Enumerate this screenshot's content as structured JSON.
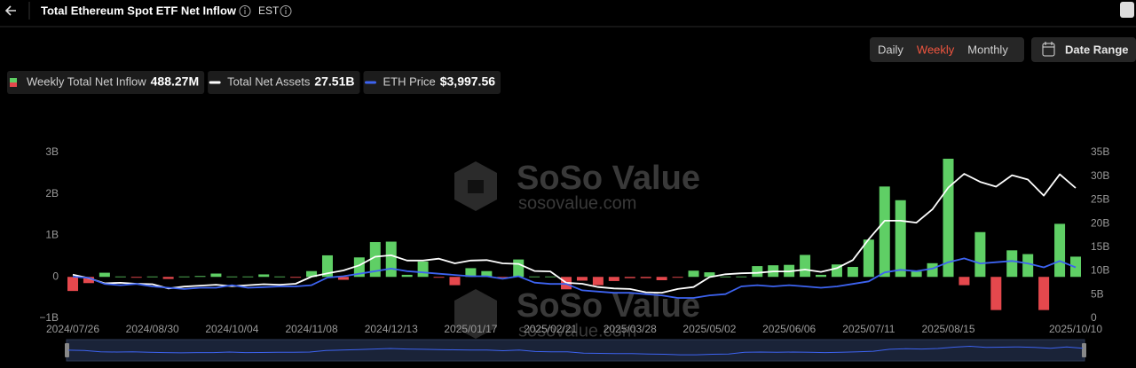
{
  "header": {
    "title": "Total Ethereum Spot ETF Net Inflow",
    "timezone": "EST"
  },
  "controls": {
    "periods": [
      "Daily",
      "Weekly",
      "Monthly"
    ],
    "active_period": 1,
    "date_range": "Date Range"
  },
  "watermark": {
    "brand": "SoSo Value",
    "url": "sosovalue.com"
  },
  "chart_data": {
    "type": "combo",
    "categories": [
      "2024/07/26",
      null,
      null,
      null,
      null,
      "2024/08/30",
      null,
      null,
      null,
      null,
      "2024/10/04",
      null,
      null,
      null,
      null,
      "2024/11/08",
      null,
      null,
      null,
      null,
      "2024/12/13",
      null,
      null,
      null,
      null,
      "2025/01/17",
      null,
      null,
      null,
      null,
      "2025/02/21",
      null,
      null,
      null,
      null,
      "2025/03/28",
      null,
      null,
      null,
      null,
      "2025/05/02",
      null,
      null,
      null,
      null,
      "2025/06/06",
      null,
      null,
      null,
      null,
      "2025/07/11",
      null,
      null,
      null,
      null,
      "2025/08/15",
      null,
      null,
      null,
      null,
      null,
      null,
      null,
      "2025/10/10"
    ],
    "ylim": [
      -1,
      3
    ],
    "yticks": [
      {
        "value": -1,
        "label": "−1B"
      },
      {
        "value": 0,
        "label": "0"
      },
      {
        "value": 1,
        "label": "1B"
      },
      {
        "value": 2,
        "label": "2B"
      },
      {
        "value": 3,
        "label": "3B"
      }
    ],
    "y2lim": [
      0,
      35
    ],
    "y2ticks": [
      {
        "value": 0,
        "label": "0"
      },
      {
        "value": 5,
        "label": "5B"
      },
      {
        "value": 10,
        "label": "10B"
      },
      {
        "value": 15,
        "label": "15B"
      },
      {
        "value": 20,
        "label": "20B"
      },
      {
        "value": 25,
        "label": "25B"
      },
      {
        "value": 30,
        "label": "30B"
      },
      {
        "value": 35,
        "label": "35B"
      }
    ],
    "y3lim": [
      0,
      13000
    ],
    "grid": false,
    "series": [
      {
        "name": "Weekly Total Net Inflow",
        "legend_value": "488.27M",
        "type": "bar",
        "axis": "y",
        "color": "#5fcf65",
        "negative_color": "#e5484d",
        "values": [
          -0.34,
          -0.15,
          0.1,
          0.01,
          -0.02,
          0.01,
          -0.05,
          0.01,
          0.02,
          0.08,
          0.01,
          0.01,
          0.06,
          0.01,
          -0.02,
          0.14,
          0.52,
          -0.07,
          0.47,
          0.84,
          0.85,
          0.05,
          0.37,
          -0.02,
          -0.2,
          0.21,
          0.14,
          -0.02,
          0.42,
          0.01,
          0.01,
          -0.3,
          -0.09,
          -0.2,
          -0.1,
          -0.03,
          -0.03,
          -0.08,
          -0.02,
          0.15,
          0.11,
          0.01,
          0.01,
          0.26,
          0.28,
          0.29,
          0.53,
          0.05,
          0.3,
          0.24,
          0.9,
          2.18,
          1.85,
          0.13,
          0.33,
          2.85,
          -0.2,
          1.08,
          -0.8,
          0.64,
          0.55,
          -0.8,
          1.28,
          0.48827
        ]
      },
      {
        "name": "Total Net Assets",
        "legend_value": "27.51B",
        "type": "line",
        "axis": "y2",
        "color": "#ffffff",
        "values": [
          9.2,
          8.5,
          7.4,
          7.5,
          7.3,
          7.2,
          6.3,
          6.7,
          6.9,
          7.1,
          6.8,
          7.0,
          7.2,
          7.1,
          7.3,
          8.8,
          9.5,
          10.1,
          11.2,
          13.0,
          13.3,
          12.2,
          12.2,
          12.6,
          11.6,
          12.2,
          12.3,
          11.6,
          11.5,
          10.0,
          9.9,
          7.5,
          7.3,
          6.6,
          6.3,
          6.2,
          5.5,
          5.4,
          6.2,
          6.6,
          8.7,
          9.3,
          9.5,
          9.6,
          9.9,
          9.9,
          10.3,
          9.8,
          10.6,
          12.3,
          16.7,
          20.6,
          20.6,
          20.2,
          23.0,
          27.6,
          30.5,
          28.8,
          27.8,
          30.2,
          29.3,
          25.9,
          30.4,
          27.51
        ]
      },
      {
        "name": "ETH Price",
        "legend_value": "$3,997.56",
        "type": "line",
        "axis": "y3",
        "color": "#3d63f0",
        "values": [
          3270,
          3180,
          2700,
          2600,
          2700,
          2500,
          2400,
          2300,
          2400,
          2400,
          2600,
          2400,
          2450,
          2500,
          2500,
          2600,
          3200,
          3300,
          3500,
          3700,
          3900,
          3700,
          3600,
          3500,
          3400,
          3300,
          3300,
          3100,
          3300,
          2800,
          2700,
          2700,
          2200,
          2100,
          2000,
          2000,
          1900,
          1800,
          1600,
          1600,
          1800,
          1900,
          2500,
          2600,
          2500,
          2600,
          2500,
          2400,
          2500,
          2700,
          2900,
          3600,
          3800,
          3700,
          3900,
          4400,
          4700,
          4300,
          4400,
          4500,
          4300,
          4000,
          4500,
          3997.56
        ]
      }
    ]
  }
}
